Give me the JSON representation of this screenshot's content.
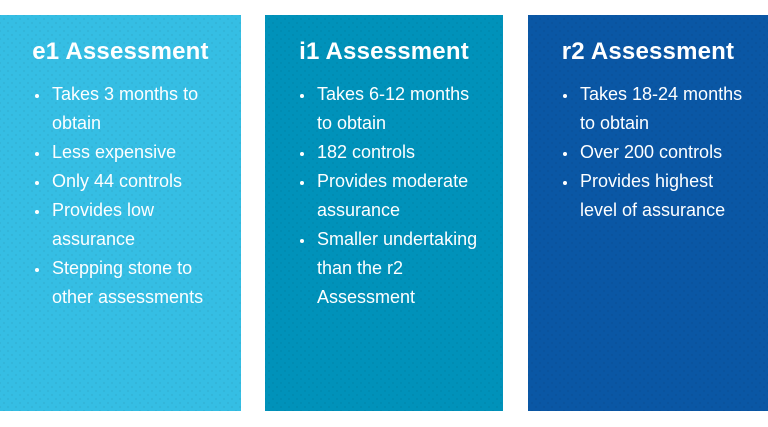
{
  "page": {
    "background_color": "#ffffff",
    "text_color": "#ffffff"
  },
  "cards": [
    {
      "title": "e1 Assessment",
      "color": "#35bee4",
      "bullets": [
        "Takes 3 months to obtain",
        "Less expensive",
        "Only 44 controls",
        "Provides low assurance",
        "Stepping stone to other assessments"
      ]
    },
    {
      "title": "i1 Assessment",
      "color": "#0092ba",
      "bullets": [
        "Takes 6-12 months to obtain",
        "182 controls",
        "Provides moderate assurance",
        "Smaller undertaking than the r2 Assessment"
      ]
    },
    {
      "title": "r2 Assessment",
      "color": "#0a57a5",
      "bullets": [
        "Takes 18-24 months to obtain",
        "Over 200 controls",
        "Provides highest level of assurance"
      ]
    }
  ]
}
